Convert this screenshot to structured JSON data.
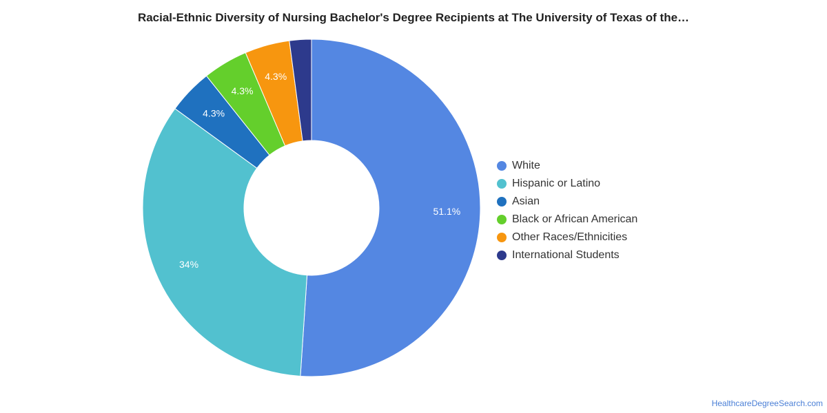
{
  "chart_data": {
    "type": "pie",
    "title": "Racial-Ethnic Diversity of Nursing Bachelor's Degree Recipients at The University of Texas of the…",
    "legend_position": "right",
    "donut": true,
    "slices": [
      {
        "name": "White",
        "value": 51.1,
        "label": "51.1%",
        "color": "#5487e2"
      },
      {
        "name": "Hispanic or Latino",
        "value": 34.0,
        "label": "34%",
        "color": "#52c1cf"
      },
      {
        "name": "Asian",
        "value": 4.3,
        "label": "4.3%",
        "color": "#1f71bf"
      },
      {
        "name": "Black or African American",
        "value": 4.3,
        "label": "4.3%",
        "color": "#64cf2c"
      },
      {
        "name": "Other Races/Ethnicities",
        "value": 4.3,
        "label": "4.3%",
        "color": "#f7960f"
      },
      {
        "name": "International Students",
        "value": 2.1,
        "label": "",
        "color": "#2d3a8c"
      }
    ]
  },
  "footer": {
    "credit": "HealthcareDegreeSearch.com"
  }
}
